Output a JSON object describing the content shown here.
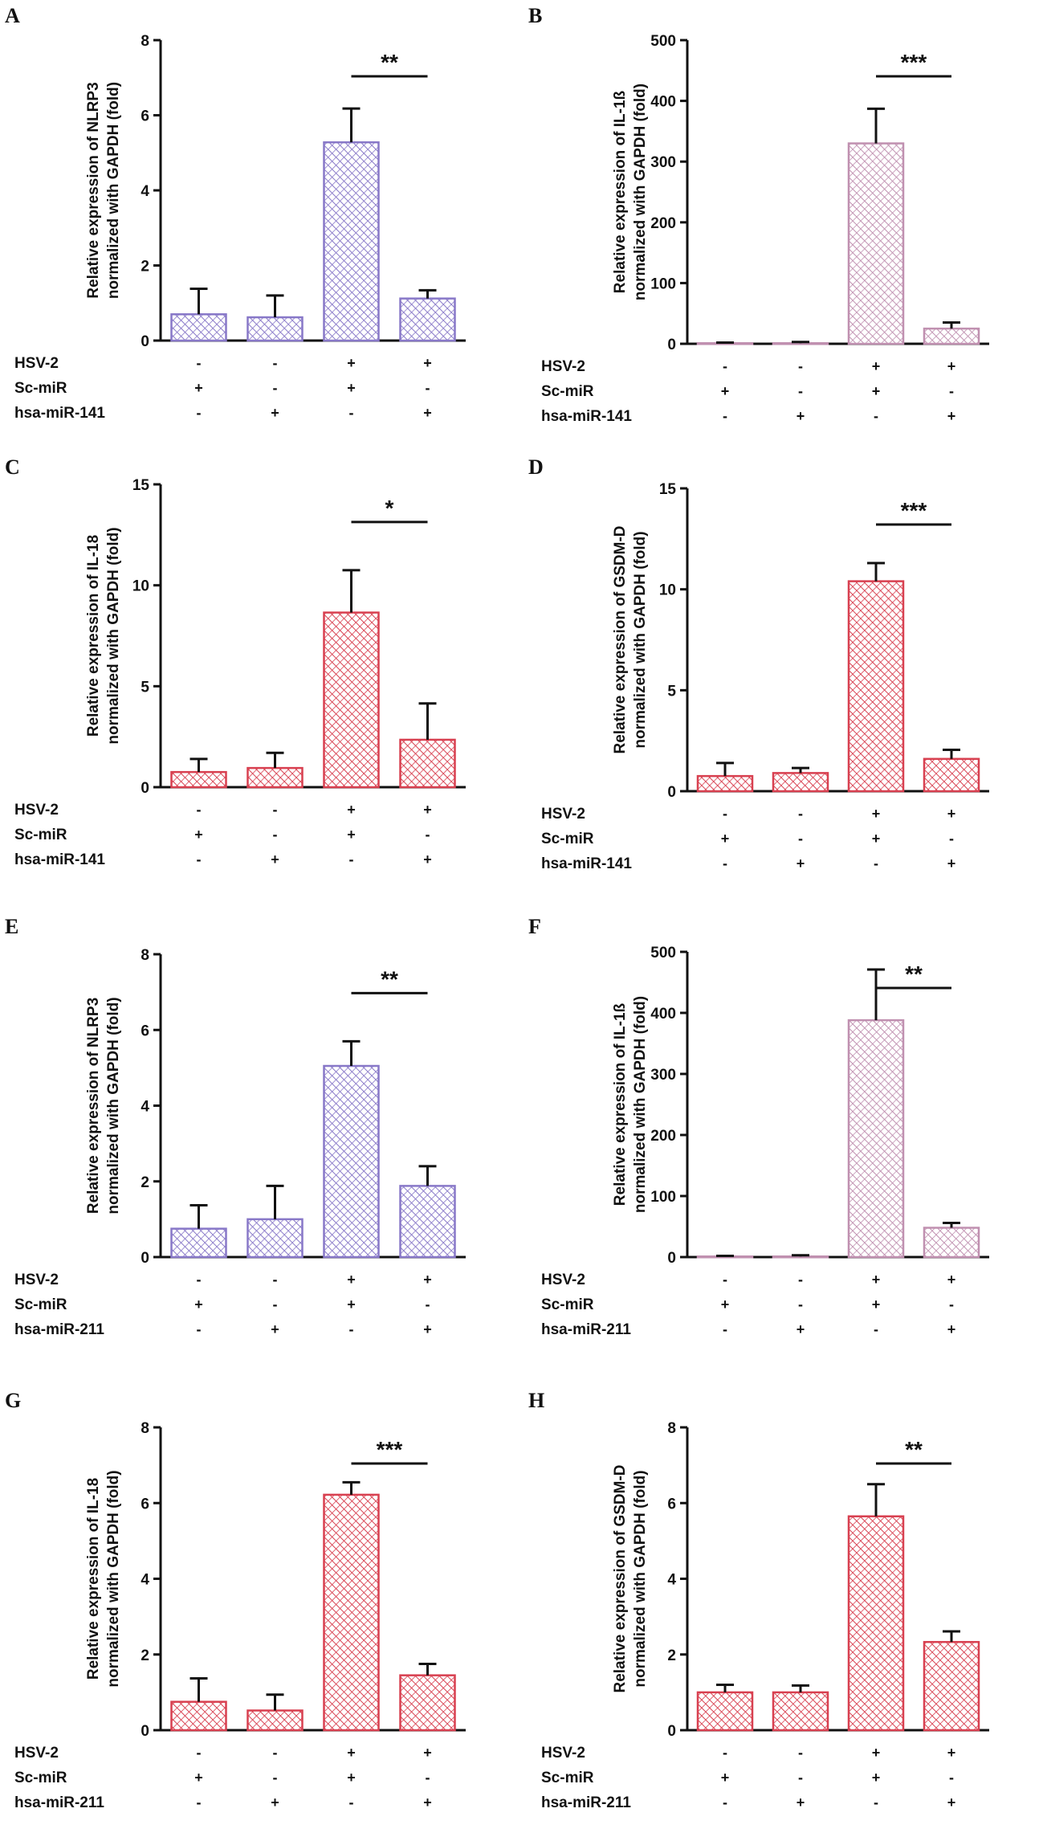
{
  "conditions": {
    "labels": [
      "HSV-2",
      "Sc-miR"
    ]
  },
  "colors": {
    "blue": "#8878c8",
    "pink": "#c090b0",
    "red": "#d84050"
  },
  "chart_data": [
    {
      "panel": "A",
      "type": "bar",
      "color": "blue",
      "ylabel": [
        "Relative expression of NLRP3",
        "normalized with GAPDH (fold)"
      ],
      "ylim": [
        0,
        8
      ],
      "yticks": [
        0,
        2,
        4,
        6,
        8
      ],
      "values": [
        0.7,
        0.62,
        5.28,
        1.12
      ],
      "errors": [
        0.68,
        0.58,
        0.9,
        0.22
      ],
      "significance": "**",
      "conditions": {
        "third_label": "hsa-miR-141",
        "HSV-2": [
          "-",
          "-",
          "+",
          "+"
        ],
        "Sc-miR": [
          "+",
          "-",
          "+",
          "-"
        ],
        "mir": [
          "-",
          "+",
          "-",
          "+"
        ]
      }
    },
    {
      "panel": "B",
      "type": "bar",
      "color": "pink",
      "ylabel": [
        "Relative expression of IL-1ß",
        "normalized with GAPDH (fold)"
      ],
      "ylim": [
        0,
        500
      ],
      "yticks": [
        0,
        100,
        200,
        300,
        400,
        500
      ],
      "values": [
        1,
        1,
        330,
        25
      ],
      "errors": [
        1,
        2,
        57,
        10
      ],
      "significance": "***",
      "conditions": {
        "third_label": "hsa-miR-141",
        "HSV-2": [
          "-",
          "-",
          "+",
          "+"
        ],
        "Sc-miR": [
          "+",
          "-",
          "+",
          "-"
        ],
        "mir": [
          "-",
          "+",
          "-",
          "+"
        ]
      }
    },
    {
      "panel": "C",
      "type": "bar",
      "color": "red",
      "ylabel": [
        "Relative expression of IL-18",
        "normalized with GAPDH (fold)"
      ],
      "ylim": [
        0,
        15
      ],
      "yticks": [
        0,
        5,
        10,
        15
      ],
      "values": [
        0.75,
        0.95,
        8.65,
        2.35
      ],
      "errors": [
        0.65,
        0.75,
        2.1,
        1.8
      ],
      "significance": "*",
      "conditions": {
        "third_label": "hsa-miR-141",
        "HSV-2": [
          "-",
          "-",
          "+",
          "+"
        ],
        "Sc-miR": [
          "+",
          "-",
          "+",
          "-"
        ],
        "mir": [
          "-",
          "+",
          "-",
          "+"
        ]
      }
    },
    {
      "panel": "D",
      "type": "bar",
      "color": "red",
      "ylabel": [
        "Relative expression of GSDM-D",
        "normalized with GAPDH (fold)"
      ],
      "ylim": [
        0,
        15
      ],
      "yticks": [
        0,
        5,
        10,
        15
      ],
      "values": [
        0.75,
        0.9,
        10.4,
        1.6
      ],
      "errors": [
        0.65,
        0.25,
        0.9,
        0.45
      ],
      "significance": "***",
      "conditions": {
        "third_label": "hsa-miR-141",
        "HSV-2": [
          "-",
          "-",
          "+",
          "+"
        ],
        "Sc-miR": [
          "+",
          "-",
          "+",
          "-"
        ],
        "mir": [
          "-",
          "+",
          "-",
          "+"
        ]
      }
    },
    {
      "panel": "E",
      "type": "bar",
      "color": "blue",
      "ylabel": [
        "Relative expression of NLRP3",
        "normalized with GAPDH (fold)"
      ],
      "ylim": [
        0,
        8
      ],
      "yticks": [
        0,
        2,
        4,
        6,
        8
      ],
      "values": [
        0.75,
        1.0,
        5.05,
        1.88
      ],
      "errors": [
        0.62,
        0.88,
        0.65,
        0.52
      ],
      "significance": "**",
      "conditions": {
        "third_label": "hsa-miR-211",
        "HSV-2": [
          "-",
          "-",
          "+",
          "+"
        ],
        "Sc-miR": [
          "+",
          "-",
          "+",
          "-"
        ],
        "mir": [
          "-",
          "+",
          "-",
          "+"
        ]
      }
    },
    {
      "panel": "F",
      "type": "bar",
      "color": "pink",
      "ylabel": [
        "Relative expression of IL-1ß",
        "normalized with GAPDH (fold)"
      ],
      "ylim": [
        0,
        500
      ],
      "yticks": [
        0,
        100,
        200,
        300,
        400,
        500
      ],
      "values": [
        1,
        1,
        388,
        48
      ],
      "errors": [
        1,
        2,
        83,
        8
      ],
      "significance": "**",
      "conditions": {
        "third_label": "hsa-miR-211",
        "HSV-2": [
          "-",
          "-",
          "+",
          "+"
        ],
        "Sc-miR": [
          "+",
          "-",
          "+",
          "-"
        ],
        "mir": [
          "-",
          "+",
          "-",
          "+"
        ]
      }
    },
    {
      "panel": "G",
      "type": "bar",
      "color": "red",
      "ylabel": [
        "Relative expression of IL-18",
        "normalized with GAPDH (fold)"
      ],
      "ylim": [
        0,
        8
      ],
      "yticks": [
        0,
        2,
        4,
        6,
        8
      ],
      "values": [
        0.75,
        0.52,
        6.22,
        1.45
      ],
      "errors": [
        0.62,
        0.42,
        0.33,
        0.3
      ],
      "significance": "***",
      "conditions": {
        "third_label": "hsa-miR-211",
        "HSV-2": [
          "-",
          "-",
          "+",
          "+"
        ],
        "Sc-miR": [
          "+",
          "-",
          "+",
          "-"
        ],
        "mir": [
          "-",
          "+",
          "-",
          "+"
        ]
      }
    },
    {
      "panel": "H",
      "type": "bar",
      "color": "red",
      "ylabel": [
        "Relative expression of GSDM-D",
        "normalized with GAPDH (fold)"
      ],
      "ylim": [
        0,
        8
      ],
      "yticks": [
        0,
        2,
        4,
        6,
        8
      ],
      "values": [
        1.0,
        1.0,
        5.65,
        2.33
      ],
      "errors": [
        0.2,
        0.18,
        0.85,
        0.28
      ],
      "significance": "**",
      "conditions": {
        "third_label": "hsa-miR-211",
        "HSV-2": [
          "-",
          "-",
          "+",
          "+"
        ],
        "Sc-miR": [
          "+",
          "-",
          "+",
          "-"
        ],
        "mir": [
          "-",
          "+",
          "-",
          "+"
        ]
      }
    }
  ]
}
